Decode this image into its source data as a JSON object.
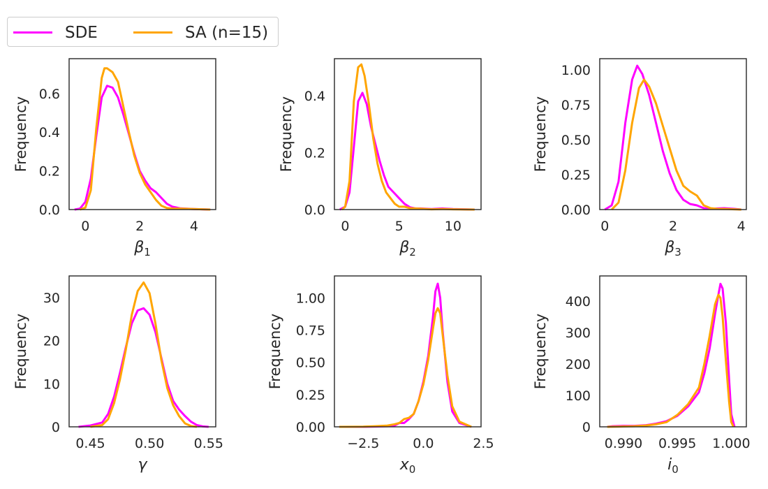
{
  "legend": {
    "entries": [
      {
        "label": "SDE",
        "color": "#ff00ff"
      },
      {
        "label": "SA (n=15)",
        "color": "#ffa500"
      }
    ]
  },
  "chart_data": [
    {
      "type": "line",
      "xlabel": "β₁",
      "xlabel_base": "β",
      "xlabel_sub": "1",
      "ylabel": "Frequency",
      "xlim": [
        -0.6,
        4.8
      ],
      "ylim": [
        0,
        0.78
      ],
      "xticks": [
        0,
        2,
        4
      ],
      "xtick_labels": [
        "0",
        "2",
        "4"
      ],
      "yticks": [
        0,
        0.2,
        0.4,
        0.6
      ],
      "ytick_labels": [
        "0.0",
        "0.2",
        "0.4",
        "0.6"
      ],
      "series": [
        {
          "name": "SDE",
          "color": "#ff00ff",
          "x": [
            -0.4,
            -0.2,
            0.0,
            0.2,
            0.4,
            0.6,
            0.8,
            1.0,
            1.2,
            1.4,
            1.6,
            1.8,
            2.0,
            2.2,
            2.4,
            2.6,
            2.8,
            3.0,
            3.2,
            3.5,
            4.0,
            4.6
          ],
          "y": [
            0.0,
            0.005,
            0.04,
            0.16,
            0.38,
            0.58,
            0.64,
            0.63,
            0.58,
            0.49,
            0.39,
            0.29,
            0.2,
            0.15,
            0.11,
            0.09,
            0.06,
            0.03,
            0.015,
            0.006,
            0.003,
            0.0
          ]
        },
        {
          "name": "SA (n=15)",
          "color": "#ffa500",
          "x": [
            -0.2,
            0.0,
            0.2,
            0.4,
            0.6,
            0.7,
            0.8,
            1.0,
            1.2,
            1.4,
            1.6,
            1.8,
            2.0,
            2.2,
            2.4,
            2.6,
            2.8,
            3.0,
            3.2,
            3.5,
            4.0,
            4.6
          ],
          "y": [
            0.0,
            0.01,
            0.1,
            0.42,
            0.68,
            0.73,
            0.73,
            0.71,
            0.66,
            0.53,
            0.4,
            0.28,
            0.19,
            0.13,
            0.09,
            0.05,
            0.02,
            0.008,
            0.005,
            0.005,
            0.003,
            0.0
          ]
        }
      ]
    },
    {
      "type": "line",
      "xlabel": "β₂",
      "xlabel_base": "β",
      "xlabel_sub": "2",
      "ylabel": "Frequency",
      "xlim": [
        -1.0,
        12.6
      ],
      "ylim": [
        0,
        0.53
      ],
      "xticks": [
        0,
        5,
        10
      ],
      "xtick_labels": [
        "0",
        "5",
        "10"
      ],
      "yticks": [
        0,
        0.2,
        0.4
      ],
      "ytick_labels": [
        "0.0",
        "0.2",
        "0.4"
      ],
      "series": [
        {
          "name": "SDE",
          "color": "#ff00ff",
          "x": [
            -0.5,
            0.0,
            0.4,
            0.8,
            1.2,
            1.6,
            2.0,
            2.4,
            2.8,
            3.2,
            3.6,
            4.0,
            4.5,
            5.0,
            5.5,
            6.0,
            6.5,
            7.0,
            8.0,
            9.0,
            10.0,
            12.0
          ],
          "y": [
            0.0,
            0.01,
            0.06,
            0.22,
            0.38,
            0.41,
            0.37,
            0.29,
            0.23,
            0.17,
            0.12,
            0.08,
            0.06,
            0.04,
            0.02,
            0.008,
            0.004,
            0.004,
            0.002,
            0.004,
            0.002,
            0.0
          ]
        },
        {
          "name": "SA (n=15)",
          "color": "#ffa500",
          "x": [
            -0.3,
            0.0,
            0.4,
            0.8,
            1.2,
            1.5,
            1.8,
            2.2,
            2.6,
            3.0,
            3.4,
            3.8,
            4.2,
            4.6,
            5.0,
            5.5,
            6.0,
            7.0,
            8.0,
            9.0,
            10.0,
            12.0
          ],
          "y": [
            0.0,
            0.01,
            0.1,
            0.38,
            0.5,
            0.51,
            0.47,
            0.37,
            0.25,
            0.16,
            0.1,
            0.06,
            0.04,
            0.02,
            0.01,
            0.01,
            0.005,
            0.003,
            0.001,
            0.002,
            0.001,
            0.0
          ]
        }
      ]
    },
    {
      "type": "line",
      "xlabel": "β₃",
      "xlabel_base": "β",
      "xlabel_sub": "3",
      "ylabel": "Frequency",
      "xlim": [
        -0.15,
        4.15
      ],
      "ylim": [
        0,
        1.08
      ],
      "xticks": [
        0,
        2,
        4
      ],
      "xtick_labels": [
        "0",
        "2",
        "4"
      ],
      "yticks": [
        0,
        0.25,
        0.5,
        0.75,
        1.0
      ],
      "ytick_labels": [
        "0.00",
        "0.25",
        "0.50",
        "0.75",
        "1.00"
      ],
      "series": [
        {
          "name": "SDE",
          "color": "#ff00ff",
          "x": [
            0.0,
            0.2,
            0.4,
            0.6,
            0.8,
            0.95,
            1.1,
            1.3,
            1.5,
            1.7,
            1.9,
            2.1,
            2.3,
            2.5,
            2.7,
            2.9,
            3.1,
            3.3,
            3.5,
            3.8,
            4.0
          ],
          "y": [
            0.0,
            0.03,
            0.2,
            0.62,
            0.93,
            1.03,
            0.97,
            0.82,
            0.62,
            0.42,
            0.26,
            0.14,
            0.07,
            0.04,
            0.03,
            0.01,
            0.005,
            0.008,
            0.01,
            0.005,
            0.0
          ]
        },
        {
          "name": "SA (n=15)",
          "color": "#ffa500",
          "x": [
            0.2,
            0.4,
            0.6,
            0.8,
            1.0,
            1.15,
            1.3,
            1.5,
            1.7,
            1.9,
            2.1,
            2.3,
            2.5,
            2.7,
            2.9,
            3.1,
            3.3,
            3.6,
            4.0
          ],
          "y": [
            0.0,
            0.05,
            0.28,
            0.62,
            0.87,
            0.93,
            0.88,
            0.76,
            0.6,
            0.44,
            0.28,
            0.17,
            0.13,
            0.1,
            0.03,
            0.01,
            0.005,
            0.004,
            0.0
          ]
        }
      ]
    },
    {
      "type": "line",
      "xlabel": "γ",
      "xlabel_base": "γ",
      "xlabel_sub": "",
      "ylabel": "Frequency",
      "xlim": [
        0.432,
        0.556
      ],
      "ylim": [
        0,
        35
      ],
      "xticks": [
        0.45,
        0.5,
        0.55
      ],
      "xtick_labels": [
        "0.45",
        "0.50",
        "0.55"
      ],
      "yticks": [
        0,
        10,
        20,
        30
      ],
      "ytick_labels": [
        "0",
        "10",
        "20",
        "30"
      ],
      "series": [
        {
          "name": "SDE",
          "color": "#ff00ff",
          "x": [
            0.44,
            0.45,
            0.46,
            0.465,
            0.47,
            0.475,
            0.48,
            0.485,
            0.49,
            0.495,
            0.5,
            0.505,
            0.51,
            0.515,
            0.52,
            0.525,
            0.53,
            0.535,
            0.54,
            0.545,
            0.55
          ],
          "y": [
            0.0,
            0.3,
            1.0,
            3.0,
            7.0,
            12.5,
            18.5,
            24.0,
            27.0,
            27.5,
            26.0,
            22.0,
            16.0,
            10.0,
            6.0,
            4.0,
            2.5,
            1.2,
            0.4,
            0.1,
            0.0
          ]
        },
        {
          "name": "SA (n=15)",
          "color": "#ffa500",
          "x": [
            0.45,
            0.46,
            0.465,
            0.47,
            0.475,
            0.48,
            0.485,
            0.49,
            0.495,
            0.5,
            0.505,
            0.51,
            0.515,
            0.52,
            0.525,
            0.53,
            0.535,
            0.54
          ],
          "y": [
            0.0,
            0.4,
            1.8,
            5.5,
            11.0,
            18.0,
            26.0,
            31.5,
            33.5,
            31.0,
            24.0,
            15.5,
            9.0,
            5.0,
            2.5,
            0.8,
            0.2,
            0.0
          ]
        }
      ]
    },
    {
      "type": "line",
      "xlabel": "x₀",
      "xlabel_base": "x",
      "xlabel_sub": "0",
      "ylabel": "Frequency",
      "xlim": [
        -3.7,
        2.4
      ],
      "ylim": [
        0,
        1.17
      ],
      "xticks": [
        -2.5,
        0.0,
        2.5
      ],
      "xtick_labels": [
        "−2.5",
        "0.0",
        "2.5"
      ],
      "yticks": [
        0,
        0.25,
        0.5,
        0.75,
        1.0
      ],
      "ytick_labels": [
        "0.00",
        "0.25",
        "0.50",
        "0.75",
        "1.00"
      ],
      "series": [
        {
          "name": "SDE",
          "color": "#ff00ff",
          "x": [
            -3.5,
            -2.5,
            -2.0,
            -1.5,
            -1.2,
            -1.0,
            -0.8,
            -0.6,
            -0.4,
            -0.2,
            0.0,
            0.2,
            0.4,
            0.5,
            0.6,
            0.7,
            0.8,
            1.0,
            1.2,
            1.5,
            2.0
          ],
          "y": [
            0.0,
            0.0,
            0.002,
            0.005,
            0.01,
            0.03,
            0.03,
            0.06,
            0.1,
            0.2,
            0.35,
            0.55,
            0.85,
            1.05,
            1.11,
            1.0,
            0.75,
            0.35,
            0.12,
            0.03,
            0.0
          ]
        },
        {
          "name": "SA (n=15)",
          "color": "#ffa500",
          "x": [
            -3.5,
            -2.5,
            -2.0,
            -1.5,
            -1.2,
            -1.0,
            -0.8,
            -0.6,
            -0.4,
            -0.2,
            0.0,
            0.2,
            0.4,
            0.5,
            0.6,
            0.7,
            0.8,
            1.0,
            1.2,
            1.5,
            2.0
          ],
          "y": [
            0.0,
            0.001,
            0.005,
            0.01,
            0.02,
            0.03,
            0.06,
            0.07,
            0.1,
            0.2,
            0.33,
            0.52,
            0.76,
            0.88,
            0.92,
            0.88,
            0.72,
            0.4,
            0.16,
            0.04,
            0.0
          ]
        }
      ]
    },
    {
      "type": "line",
      "xlabel": "i₀",
      "xlabel_base": "i",
      "xlabel_sub": "0",
      "ylabel": "Frequency",
      "xlim": [
        0.9878,
        1.0014
      ],
      "ylim": [
        0,
        480
      ],
      "xticks": [
        0.99,
        0.995,
        1.0
      ],
      "xtick_labels": [
        "0.990",
        "0.995",
        "1.000"
      ],
      "yticks": [
        0,
        100,
        200,
        300,
        400
      ],
      "ytick_labels": [
        "0",
        "100",
        "200",
        "300",
        "400"
      ],
      "series": [
        {
          "name": "SDE",
          "color": "#ff00ff",
          "x": [
            0.9885,
            0.989,
            0.99,
            0.991,
            0.992,
            0.993,
            0.994,
            0.995,
            0.996,
            0.997,
            0.9975,
            0.998,
            0.9985,
            0.9988,
            0.999,
            0.9992,
            0.9995,
            0.9998,
            1.0,
            1.0003
          ],
          "y": [
            0.0,
            2,
            3,
            3,
            5,
            10,
            18,
            35,
            65,
            110,
            170,
            250,
            360,
            420,
            455,
            440,
            330,
            150,
            40,
            0
          ]
        },
        {
          "name": "SA (n=15)",
          "color": "#ffa500",
          "x": [
            0.9885,
            0.99,
            0.991,
            0.992,
            0.993,
            0.994,
            0.995,
            0.996,
            0.997,
            0.9975,
            0.998,
            0.9985,
            0.9988,
            0.999,
            0.9992,
            0.9995,
            0.9998,
            1.0,
            1.0002
          ],
          "y": [
            0.0,
            1,
            2,
            4,
            8,
            15,
            38,
            72,
            125,
            200,
            290,
            390,
            420,
            410,
            350,
            210,
            80,
            15,
            0
          ]
        }
      ]
    }
  ]
}
